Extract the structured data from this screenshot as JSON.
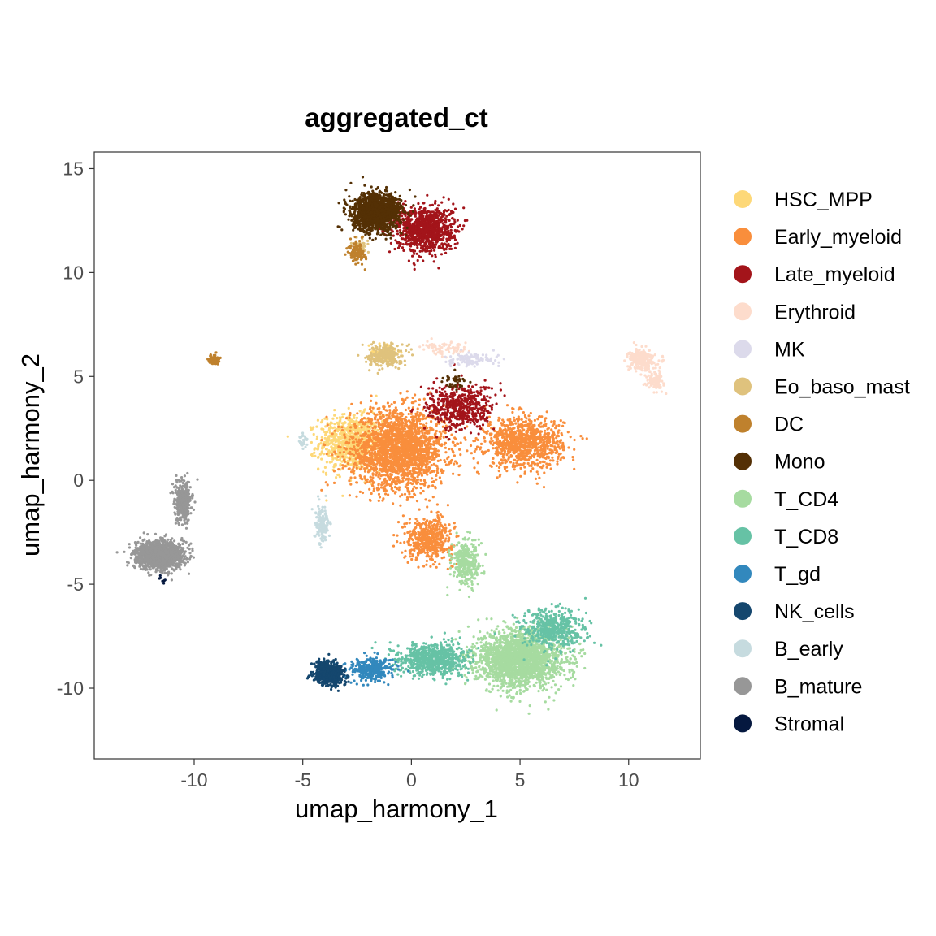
{
  "chart_data": {
    "type": "scatter",
    "title": "aggregated_ct",
    "xlabel": "umap_harmony_1",
    "ylabel": "umap_harmony_2",
    "xlim": [
      -14.6,
      13.3
    ],
    "ylim": [
      -13.4,
      15.8
    ],
    "xticks": [
      -10,
      -5,
      0,
      5,
      10
    ],
    "yticks": [
      -10,
      -5,
      0,
      5,
      10,
      15
    ],
    "grid": false,
    "legend_position": "right",
    "series": [
      {
        "name": "HSC_MPP",
        "color": "#FDD878",
        "clusters": [
          {
            "center": [
              -2.8,
              1.8
            ],
            "spread": [
              1.3,
              1.2
            ],
            "n": 900
          },
          {
            "center": [
              -1.2,
              6.2
            ],
            "spread": [
              0.6,
              0.4
            ],
            "n": 60
          }
        ]
      },
      {
        "name": "Early_myeloid",
        "color": "#F98E3C",
        "clusters": [
          {
            "center": [
              -0.6,
              1.5
            ],
            "spread": [
              2.0,
              1.7
            ],
            "n": 2200
          },
          {
            "center": [
              5.2,
              1.8
            ],
            "spread": [
              1.6,
              1.1
            ],
            "n": 1000
          },
          {
            "center": [
              0.8,
              -2.8
            ],
            "spread": [
              1.0,
              0.9
            ],
            "n": 500
          }
        ]
      },
      {
        "name": "Late_myeloid",
        "color": "#A3141A",
        "clusters": [
          {
            "center": [
              0.6,
              12.1
            ],
            "spread": [
              1.2,
              1.0
            ],
            "n": 1000
          },
          {
            "center": [
              2.3,
              3.5
            ],
            "spread": [
              1.4,
              1.0
            ],
            "n": 500
          }
        ]
      },
      {
        "name": "Erythroid",
        "color": "#FDDCCC",
        "clusters": [
          {
            "center": [
              10.6,
              5.8
            ],
            "spread": [
              0.55,
              0.45
            ],
            "n": 260
          },
          {
            "center": [
              11.2,
              4.8
            ],
            "spread": [
              0.35,
              0.4
            ],
            "n": 120
          },
          {
            "center": [
              1.6,
              6.3
            ],
            "spread": [
              1.0,
              0.3
            ],
            "n": 80
          }
        ]
      },
      {
        "name": "MK",
        "color": "#DCDAEB",
        "clusters": [
          {
            "center": [
              2.8,
              5.8
            ],
            "spread": [
              1.1,
              0.3
            ],
            "n": 110
          }
        ]
      },
      {
        "name": "Eo_baso_mast",
        "color": "#DFC27D",
        "clusters": [
          {
            "center": [
              -1.2,
              6.0
            ],
            "spread": [
              0.7,
              0.5
            ],
            "n": 260
          },
          {
            "center": [
              -2.3,
              11.2
            ],
            "spread": [
              0.3,
              0.4
            ],
            "n": 40
          }
        ]
      },
      {
        "name": "DC",
        "color": "#BF812D",
        "clusters": [
          {
            "center": [
              -9.1,
              5.8
            ],
            "spread": [
              0.22,
              0.2
            ],
            "n": 80
          },
          {
            "center": [
              -2.5,
              11.0
            ],
            "spread": [
              0.35,
              0.5
            ],
            "n": 120
          }
        ]
      },
      {
        "name": "Mono",
        "color": "#543005",
        "clusters": [
          {
            "center": [
              -1.6,
              12.9
            ],
            "spread": [
              1.0,
              0.8
            ],
            "n": 1500
          },
          {
            "center": [
              2.0,
              4.8
            ],
            "spread": [
              0.5,
              0.3
            ],
            "n": 40
          }
        ]
      },
      {
        "name": "T_CD4",
        "color": "#A6DBA0",
        "clusters": [
          {
            "center": [
              5.0,
              -8.6
            ],
            "spread": [
              1.8,
              1.2
            ],
            "n": 2200
          },
          {
            "center": [
              2.5,
              -4.0
            ],
            "spread": [
              0.6,
              1.0
            ],
            "n": 300
          }
        ]
      },
      {
        "name": "T_CD8",
        "color": "#66C2A5",
        "clusters": [
          {
            "center": [
              1.0,
              -8.6
            ],
            "spread": [
              1.4,
              0.7
            ],
            "n": 800
          },
          {
            "center": [
              6.5,
              -7.2
            ],
            "spread": [
              1.3,
              0.9
            ],
            "n": 500
          }
        ]
      },
      {
        "name": "T_gd",
        "color": "#3288BD",
        "clusters": [
          {
            "center": [
              -1.8,
              -9.1
            ],
            "spread": [
              0.9,
              0.5
            ],
            "n": 350
          }
        ]
      },
      {
        "name": "NK_cells",
        "color": "#15476E",
        "clusters": [
          {
            "center": [
              -3.8,
              -9.3
            ],
            "spread": [
              0.6,
              0.5
            ],
            "n": 700
          }
        ]
      },
      {
        "name": "B_early",
        "color": "#C6DBDF",
        "clusters": [
          {
            "center": [
              -4.1,
              -2.0
            ],
            "spread": [
              0.3,
              0.8
            ],
            "n": 160
          },
          {
            "center": [
              -5.0,
              1.9
            ],
            "spread": [
              0.2,
              0.3
            ],
            "n": 30
          }
        ]
      },
      {
        "name": "B_mature",
        "color": "#979797",
        "clusters": [
          {
            "center": [
              -11.6,
              -3.6
            ],
            "spread": [
              1.0,
              0.6
            ],
            "n": 1400
          },
          {
            "center": [
              -10.5,
              -1.0
            ],
            "spread": [
              0.35,
              0.8
            ],
            "n": 400
          }
        ]
      },
      {
        "name": "Stromal",
        "color": "#05183F",
        "clusters": [
          {
            "center": [
              -11.4,
              -4.8
            ],
            "spread": [
              0.2,
              0.2
            ],
            "n": 8
          }
        ]
      }
    ]
  }
}
